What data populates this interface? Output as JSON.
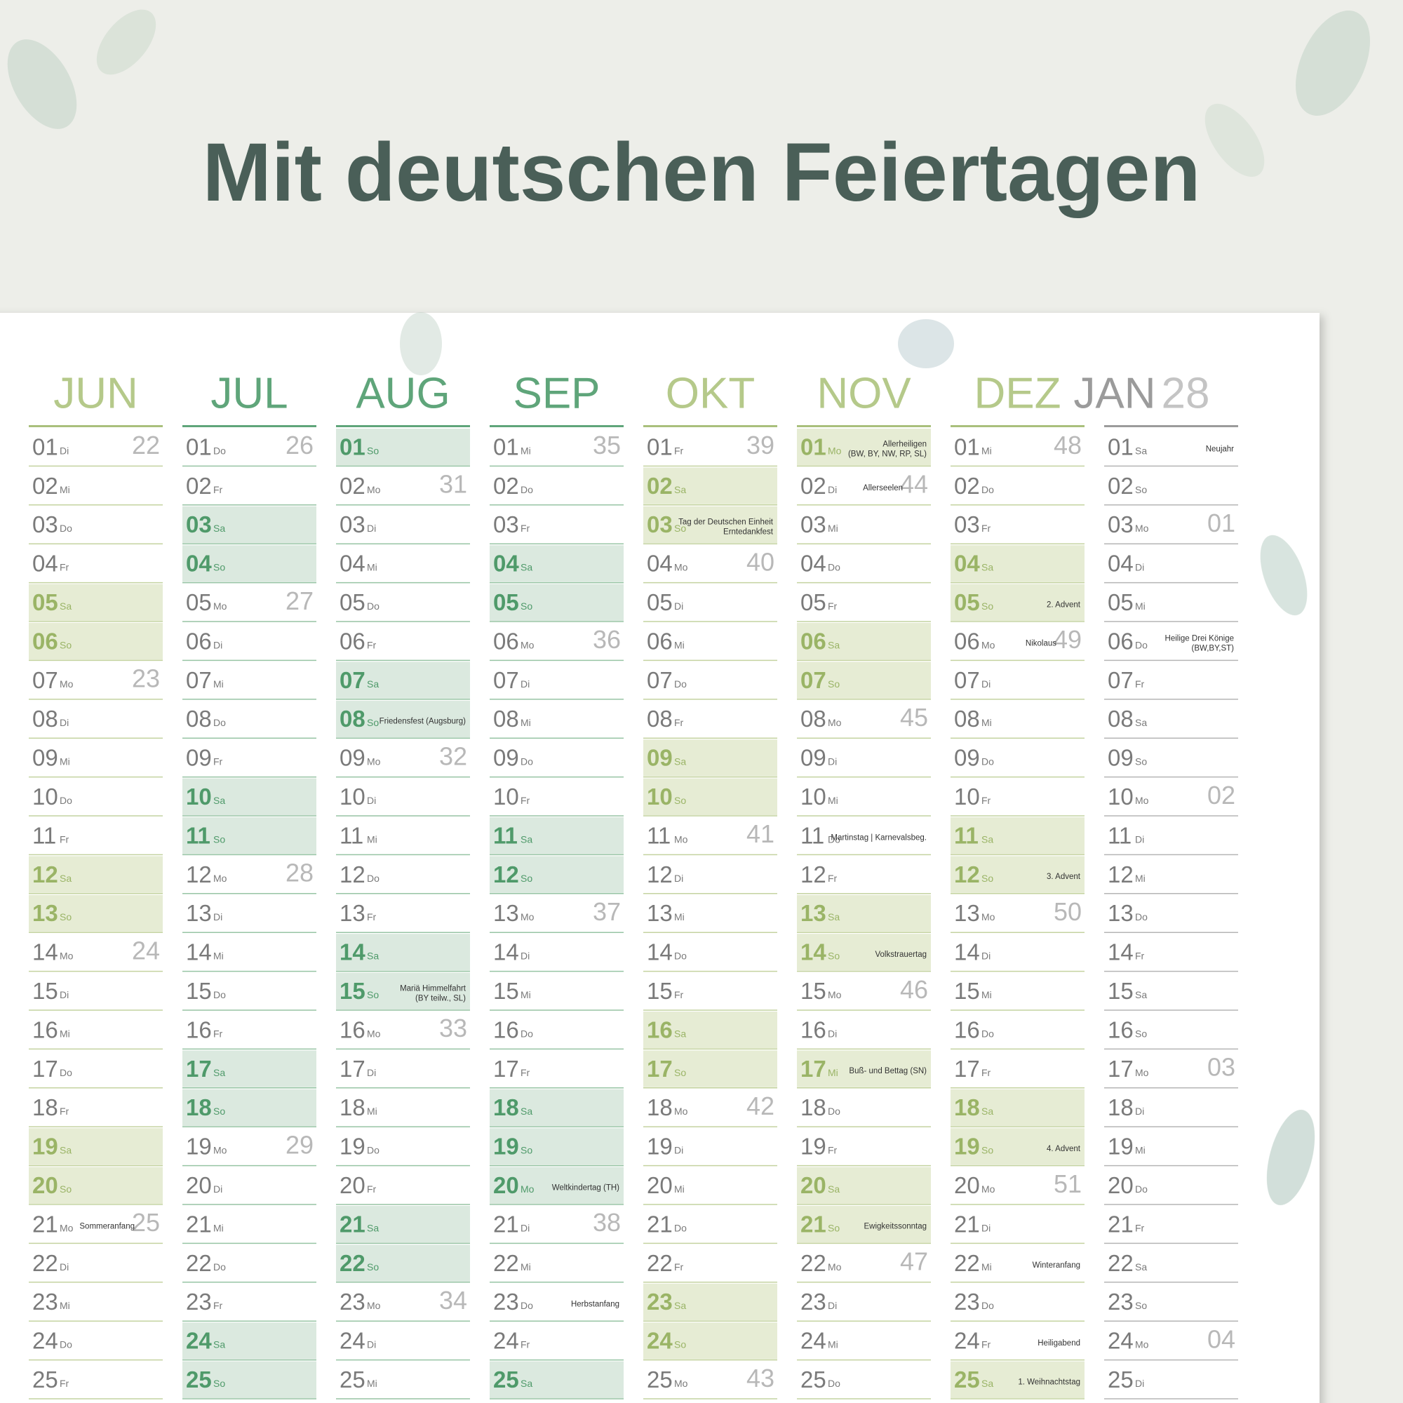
{
  "header": {
    "title": "Mit deutschen Feiertagen"
  },
  "months": [
    {
      "name": "JUN",
      "theme": "olive",
      "days": [
        {
          "d": "01",
          "wd": "Di",
          "kw": "22"
        },
        {
          "d": "02",
          "wd": "Mi"
        },
        {
          "d": "03",
          "wd": "Do"
        },
        {
          "d": "04",
          "wd": "Fr"
        },
        {
          "d": "05",
          "wd": "Sa",
          "shaded": true
        },
        {
          "d": "06",
          "wd": "So",
          "shaded": true
        },
        {
          "d": "07",
          "wd": "Mo",
          "kw": "23"
        },
        {
          "d": "08",
          "wd": "Di"
        },
        {
          "d": "09",
          "wd": "Mi"
        },
        {
          "d": "10",
          "wd": "Do"
        },
        {
          "d": "11",
          "wd": "Fr"
        },
        {
          "d": "12",
          "wd": "Sa",
          "shaded": true
        },
        {
          "d": "13",
          "wd": "So",
          "shaded": true
        },
        {
          "d": "14",
          "wd": "Mo",
          "kw": "24"
        },
        {
          "d": "15",
          "wd": "Di"
        },
        {
          "d": "16",
          "wd": "Mi"
        },
        {
          "d": "17",
          "wd": "Do"
        },
        {
          "d": "18",
          "wd": "Fr"
        },
        {
          "d": "19",
          "wd": "Sa",
          "shaded": true
        },
        {
          "d": "20",
          "wd": "So",
          "shaded": true
        },
        {
          "d": "21",
          "wd": "Mo",
          "kw": "25",
          "note": [
            "Sommeranfang"
          ]
        },
        {
          "d": "22",
          "wd": "Di"
        },
        {
          "d": "23",
          "wd": "Mi"
        },
        {
          "d": "24",
          "wd": "Do"
        },
        {
          "d": "25",
          "wd": "Fr"
        }
      ]
    },
    {
      "name": "JUL",
      "theme": "green",
      "days": [
        {
          "d": "01",
          "wd": "Do",
          "kw": "26"
        },
        {
          "d": "02",
          "wd": "Fr"
        },
        {
          "d": "03",
          "wd": "Sa",
          "shaded": true
        },
        {
          "d": "04",
          "wd": "So",
          "shaded": true
        },
        {
          "d": "05",
          "wd": "Mo",
          "kw": "27"
        },
        {
          "d": "06",
          "wd": "Di"
        },
        {
          "d": "07",
          "wd": "Mi"
        },
        {
          "d": "08",
          "wd": "Do"
        },
        {
          "d": "09",
          "wd": "Fr"
        },
        {
          "d": "10",
          "wd": "Sa",
          "shaded": true
        },
        {
          "d": "11",
          "wd": "So",
          "shaded": true
        },
        {
          "d": "12",
          "wd": "Mo",
          "kw": "28"
        },
        {
          "d": "13",
          "wd": "Di"
        },
        {
          "d": "14",
          "wd": "Mi"
        },
        {
          "d": "15",
          "wd": "Do"
        },
        {
          "d": "16",
          "wd": "Fr"
        },
        {
          "d": "17",
          "wd": "Sa",
          "shaded": true
        },
        {
          "d": "18",
          "wd": "So",
          "shaded": true
        },
        {
          "d": "19",
          "wd": "Mo",
          "kw": "29"
        },
        {
          "d": "20",
          "wd": "Di"
        },
        {
          "d": "21",
          "wd": "Mi"
        },
        {
          "d": "22",
          "wd": "Do"
        },
        {
          "d": "23",
          "wd": "Fr"
        },
        {
          "d": "24",
          "wd": "Sa",
          "shaded": true
        },
        {
          "d": "25",
          "wd": "So",
          "shaded": true
        }
      ]
    },
    {
      "name": "AUG",
      "theme": "green",
      "days": [
        {
          "d": "01",
          "wd": "So",
          "shaded": true
        },
        {
          "d": "02",
          "wd": "Mo",
          "kw": "31"
        },
        {
          "d": "03",
          "wd": "Di"
        },
        {
          "d": "04",
          "wd": "Mi"
        },
        {
          "d": "05",
          "wd": "Do"
        },
        {
          "d": "06",
          "wd": "Fr"
        },
        {
          "d": "07",
          "wd": "Sa",
          "shaded": true
        },
        {
          "d": "08",
          "wd": "So",
          "shaded": true,
          "note": [
            "Friedensfest (Augsburg)"
          ]
        },
        {
          "d": "09",
          "wd": "Mo",
          "kw": "32"
        },
        {
          "d": "10",
          "wd": "Di"
        },
        {
          "d": "11",
          "wd": "Mi"
        },
        {
          "d": "12",
          "wd": "Do"
        },
        {
          "d": "13",
          "wd": "Fr"
        },
        {
          "d": "14",
          "wd": "Sa",
          "shaded": true
        },
        {
          "d": "15",
          "wd": "So",
          "shaded": true,
          "note": [
            "Mariä Himmelfahrt",
            "(BY teilw., SL)"
          ]
        },
        {
          "d": "16",
          "wd": "Mo",
          "kw": "33"
        },
        {
          "d": "17",
          "wd": "Di"
        },
        {
          "d": "18",
          "wd": "Mi"
        },
        {
          "d": "19",
          "wd": "Do"
        },
        {
          "d": "20",
          "wd": "Fr"
        },
        {
          "d": "21",
          "wd": "Sa",
          "shaded": true
        },
        {
          "d": "22",
          "wd": "So",
          "shaded": true
        },
        {
          "d": "23",
          "wd": "Mo",
          "kw": "34"
        },
        {
          "d": "24",
          "wd": "Di"
        },
        {
          "d": "25",
          "wd": "Mi"
        }
      ]
    },
    {
      "name": "SEP",
      "theme": "green",
      "days": [
        {
          "d": "01",
          "wd": "Mi",
          "kw": "35"
        },
        {
          "d": "02",
          "wd": "Do"
        },
        {
          "d": "03",
          "wd": "Fr"
        },
        {
          "d": "04",
          "wd": "Sa",
          "shaded": true
        },
        {
          "d": "05",
          "wd": "So",
          "shaded": true
        },
        {
          "d": "06",
          "wd": "Mo",
          "kw": "36"
        },
        {
          "d": "07",
          "wd": "Di"
        },
        {
          "d": "08",
          "wd": "Mi"
        },
        {
          "d": "09",
          "wd": "Do"
        },
        {
          "d": "10",
          "wd": "Fr"
        },
        {
          "d": "11",
          "wd": "Sa",
          "shaded": true
        },
        {
          "d": "12",
          "wd": "So",
          "shaded": true
        },
        {
          "d": "13",
          "wd": "Mo",
          "kw": "37"
        },
        {
          "d": "14",
          "wd": "Di"
        },
        {
          "d": "15",
          "wd": "Mi"
        },
        {
          "d": "16",
          "wd": "Do"
        },
        {
          "d": "17",
          "wd": "Fr"
        },
        {
          "d": "18",
          "wd": "Sa",
          "shaded": true
        },
        {
          "d": "19",
          "wd": "So",
          "shaded": true
        },
        {
          "d": "20",
          "wd": "Mo",
          "shaded": true,
          "note": [
            "Weltkindertag (TH)"
          ]
        },
        {
          "d": "21",
          "wd": "Di",
          "kw": "38"
        },
        {
          "d": "22",
          "wd": "Mi"
        },
        {
          "d": "23",
          "wd": "Do",
          "note": [
            "Herbstanfang"
          ]
        },
        {
          "d": "24",
          "wd": "Fr"
        },
        {
          "d": "25",
          "wd": "Sa",
          "shaded": true
        }
      ]
    },
    {
      "name": "OKT",
      "theme": "olive",
      "days": [
        {
          "d": "01",
          "wd": "Fr",
          "kw": "39"
        },
        {
          "d": "02",
          "wd": "Sa",
          "shaded": true
        },
        {
          "d": "03",
          "wd": "So",
          "shaded": true,
          "note": [
            "Tag der Deutschen Einheit",
            "Erntedankfest"
          ]
        },
        {
          "d": "04",
          "wd": "Mo",
          "kw": "40"
        },
        {
          "d": "05",
          "wd": "Di"
        },
        {
          "d": "06",
          "wd": "Mi"
        },
        {
          "d": "07",
          "wd": "Do"
        },
        {
          "d": "08",
          "wd": "Fr"
        },
        {
          "d": "09",
          "wd": "Sa",
          "shaded": true
        },
        {
          "d": "10",
          "wd": "So",
          "shaded": true
        },
        {
          "d": "11",
          "wd": "Mo",
          "kw": "41"
        },
        {
          "d": "12",
          "wd": "Di"
        },
        {
          "d": "13",
          "wd": "Mi"
        },
        {
          "d": "14",
          "wd": "Do"
        },
        {
          "d": "15",
          "wd": "Fr"
        },
        {
          "d": "16",
          "wd": "Sa",
          "shaded": true
        },
        {
          "d": "17",
          "wd": "So",
          "shaded": true
        },
        {
          "d": "18",
          "wd": "Mo",
          "kw": "42"
        },
        {
          "d": "19",
          "wd": "Di"
        },
        {
          "d": "20",
          "wd": "Mi"
        },
        {
          "d": "21",
          "wd": "Do"
        },
        {
          "d": "22",
          "wd": "Fr"
        },
        {
          "d": "23",
          "wd": "Sa",
          "shaded": true
        },
        {
          "d": "24",
          "wd": "So",
          "shaded": true
        },
        {
          "d": "25",
          "wd": "Mo",
          "kw": "43"
        }
      ]
    },
    {
      "name": "NOV",
      "theme": "olive",
      "days": [
        {
          "d": "01",
          "wd": "Mo",
          "shaded": true,
          "note": [
            "Allerheiligen",
            "(BW, BY, NW, RP, SL)"
          ]
        },
        {
          "d": "02",
          "wd": "Di",
          "kw": "44",
          "note": [
            "Allerseelen"
          ]
        },
        {
          "d": "03",
          "wd": "Mi"
        },
        {
          "d": "04",
          "wd": "Do"
        },
        {
          "d": "05",
          "wd": "Fr"
        },
        {
          "d": "06",
          "wd": "Sa",
          "shaded": true
        },
        {
          "d": "07",
          "wd": "So",
          "shaded": true
        },
        {
          "d": "08",
          "wd": "Mo",
          "kw": "45"
        },
        {
          "d": "09",
          "wd": "Di"
        },
        {
          "d": "10",
          "wd": "Mi"
        },
        {
          "d": "11",
          "wd": "Do",
          "note": [
            "Martinstag | Karnevalsbeg."
          ]
        },
        {
          "d": "12",
          "wd": "Fr"
        },
        {
          "d": "13",
          "wd": "Sa",
          "shaded": true
        },
        {
          "d": "14",
          "wd": "So",
          "shaded": true,
          "note": [
            "Volkstrauertag"
          ]
        },
        {
          "d": "15",
          "wd": "Mo",
          "kw": "46"
        },
        {
          "d": "16",
          "wd": "Di"
        },
        {
          "d": "17",
          "wd": "Mi",
          "shaded": true,
          "note": [
            "Buß- und Bettag (SN)"
          ]
        },
        {
          "d": "18",
          "wd": "Do"
        },
        {
          "d": "19",
          "wd": "Fr"
        },
        {
          "d": "20",
          "wd": "Sa",
          "shaded": true
        },
        {
          "d": "21",
          "wd": "So",
          "shaded": true,
          "note": [
            "Ewigkeitssonntag"
          ]
        },
        {
          "d": "22",
          "wd": "Mo",
          "kw": "47"
        },
        {
          "d": "23",
          "wd": "Di"
        },
        {
          "d": "24",
          "wd": "Mi"
        },
        {
          "d": "25",
          "wd": "Do"
        }
      ]
    },
    {
      "name": "DEZ",
      "theme": "olive",
      "days": [
        {
          "d": "01",
          "wd": "Mi",
          "kw": "48"
        },
        {
          "d": "02",
          "wd": "Do"
        },
        {
          "d": "03",
          "wd": "Fr"
        },
        {
          "d": "04",
          "wd": "Sa",
          "shaded": true
        },
        {
          "d": "05",
          "wd": "So",
          "shaded": true,
          "note": [
            "2. Advent"
          ]
        },
        {
          "d": "06",
          "wd": "Mo",
          "kw": "49",
          "note": [
            "Nikolaus"
          ]
        },
        {
          "d": "07",
          "wd": "Di"
        },
        {
          "d": "08",
          "wd": "Mi"
        },
        {
          "d": "09",
          "wd": "Do"
        },
        {
          "d": "10",
          "wd": "Fr"
        },
        {
          "d": "11",
          "wd": "Sa",
          "shaded": true
        },
        {
          "d": "12",
          "wd": "So",
          "shaded": true,
          "note": [
            "3. Advent"
          ]
        },
        {
          "d": "13",
          "wd": "Mo",
          "kw": "50"
        },
        {
          "d": "14",
          "wd": "Di"
        },
        {
          "d": "15",
          "wd": "Mi"
        },
        {
          "d": "16",
          "wd": "Do"
        },
        {
          "d": "17",
          "wd": "Fr"
        },
        {
          "d": "18",
          "wd": "Sa",
          "shaded": true
        },
        {
          "d": "19",
          "wd": "So",
          "shaded": true,
          "note": [
            "4. Advent"
          ]
        },
        {
          "d": "20",
          "wd": "Mo",
          "kw": "51"
        },
        {
          "d": "21",
          "wd": "Di"
        },
        {
          "d": "22",
          "wd": "Mi",
          "note": [
            "Winteranfang"
          ]
        },
        {
          "d": "23",
          "wd": "Do"
        },
        {
          "d": "24",
          "wd": "Fr",
          "note": [
            "Heiligabend"
          ]
        },
        {
          "d": "25",
          "wd": "Sa",
          "shaded": true,
          "note": [
            "1. Weihnachtstag"
          ]
        }
      ]
    },
    {
      "name": "JAN",
      "year": "28",
      "theme": "gray",
      "days": [
        {
          "d": "01",
          "wd": "Sa",
          "note": [
            "Neujahr"
          ]
        },
        {
          "d": "02",
          "wd": "So"
        },
        {
          "d": "03",
          "wd": "Mo",
          "kw": "01"
        },
        {
          "d": "04",
          "wd": "Di"
        },
        {
          "d": "05",
          "wd": "Mi"
        },
        {
          "d": "06",
          "wd": "Do",
          "note": [
            "Heilige Drei Könige",
            "(BW,BY,ST)"
          ]
        },
        {
          "d": "07",
          "wd": "Fr"
        },
        {
          "d": "08",
          "wd": "Sa"
        },
        {
          "d": "09",
          "wd": "So"
        },
        {
          "d": "10",
          "wd": "Mo",
          "kw": "02"
        },
        {
          "d": "11",
          "wd": "Di"
        },
        {
          "d": "12",
          "wd": "Mi"
        },
        {
          "d": "13",
          "wd": "Do"
        },
        {
          "d": "14",
          "wd": "Fr"
        },
        {
          "d": "15",
          "wd": "Sa"
        },
        {
          "d": "16",
          "wd": "So"
        },
        {
          "d": "17",
          "wd": "Mo",
          "kw": "03"
        },
        {
          "d": "18",
          "wd": "Di"
        },
        {
          "d": "19",
          "wd": "Mi"
        },
        {
          "d": "20",
          "wd": "Do"
        },
        {
          "d": "21",
          "wd": "Fr"
        },
        {
          "d": "22",
          "wd": "Sa"
        },
        {
          "d": "23",
          "wd": "So"
        },
        {
          "d": "24",
          "wd": "Mo",
          "kw": "04"
        },
        {
          "d": "25",
          "wd": "Di"
        }
      ]
    }
  ]
}
